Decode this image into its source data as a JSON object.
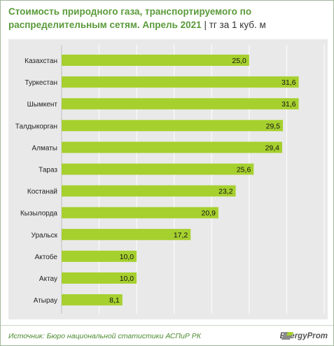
{
  "header": {
    "title": "Стоимость природного газа, транспортируемого по распределительным сетям. Апрель 2021",
    "unit": "| тг за 1 куб. м"
  },
  "footer": {
    "source": "Источник: Бюро национальной  статистики АСПиР РК",
    "logo": "EnergyProm"
  },
  "colors": {
    "bar": "#a6d02e",
    "title": "#5a9a3a",
    "plot_background": "#e9e9e9"
  },
  "chart_data": {
    "type": "bar",
    "orientation": "horizontal",
    "categories": [
      "Казахстан",
      "Туркестан",
      "Шымкент",
      "Талдыкорган",
      "Алматы",
      "Тараз",
      "Костанай",
      "Кызылорда",
      "Уральск",
      "Актобе",
      "Актау",
      "Атырау"
    ],
    "values": [
      25.0,
      31.6,
      31.6,
      29.5,
      29.4,
      25.6,
      23.2,
      20.9,
      17.2,
      10.0,
      10.0,
      8.1
    ],
    "value_labels": [
      "25,0",
      "31,6",
      "31,6",
      "29,5",
      "29,4",
      "25,6",
      "23,2",
      "20,9",
      "17,2",
      "10,0",
      "10,0",
      "8,1"
    ],
    "xlim": [
      0,
      35
    ],
    "grid": true,
    "legend": "none"
  }
}
